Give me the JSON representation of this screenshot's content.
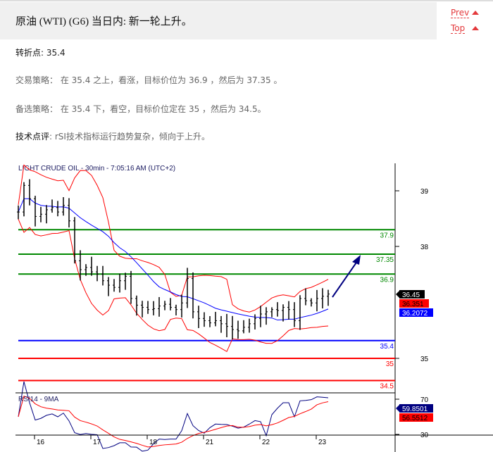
{
  "header": {
    "title": "原油 (WTI) (G6) 当日内: 新一轮上升。",
    "prev": "Prev",
    "top": "Top"
  },
  "content": {
    "pivot_label": "转折点",
    "pivot_value": ": 35.4",
    "strategy": "交易策略：  在 35.4 之上，看涨，目标价位为 36.9 ，然后为 37.35 。",
    "alternative": "备选策略：  在 35.4 下，看空，目标价位定在 35 ，然后为 34.5。",
    "comment_label": "技术点评",
    "comment_value": ": rSI技术指标运行趋势复杂，倾向于上升。"
  },
  "chart_data": {
    "type": "line",
    "title": "LIGHT CRUDE OIL - 30min - 7:05:16 AM (UTC+2)",
    "y_ticks": [
      "39",
      "38",
      "35"
    ],
    "x_ticks": [
      "16",
      "17",
      "18",
      "21",
      "22",
      "23"
    ],
    "levels": [
      {
        "value": 37.9,
        "label": "37.9",
        "color": "#008800"
      },
      {
        "value": 37.35,
        "label": "37.35",
        "color": "#008800"
      },
      {
        "value": 36.9,
        "label": "36.9",
        "color": "#008800"
      },
      {
        "value": 35.4,
        "label": "35.4",
        "color": "#0000ff"
      },
      {
        "value": 35,
        "label": "35",
        "color": "#ff0000"
      },
      {
        "value": 34.5,
        "label": "34.5",
        "color": "#ff0000"
      }
    ],
    "closes": [
      38.3,
      38.9,
      38.6,
      38.2,
      38.25,
      38.35,
      38.4,
      38.3,
      38.45,
      38.1,
      37.2,
      37.0,
      37.05,
      36.95,
      36.9,
      36.75,
      36.65,
      36.6,
      36.75,
      36.85,
      36.35,
      36.2,
      36.15,
      36.1,
      36.12,
      36.18,
      36.22,
      36.15,
      36.1,
      36.25,
      36.8,
      36.05,
      35.9,
      35.85,
      35.8,
      35.85,
      35.78,
      35.72,
      35.65,
      35.62,
      35.7,
      35.78,
      35.9,
      36.0,
      36.05,
      36.1,
      36.08,
      36.15,
      36.1,
      35.85,
      36.35,
      36.3,
      36.25,
      36.35,
      36.4,
      36.45
    ],
    "markers": {
      "last": "36.45",
      "band": "36.351",
      "ma": "36.2072"
    },
    "rsi": {
      "title": "RSI14 - 9MA",
      "ticks": [
        "70",
        "30"
      ],
      "last": "59.8501",
      "ma": "56.5512"
    },
    "colors": {
      "bands": "#ff0000",
      "ma": "#0000ff",
      "rsi": "#000080",
      "rsi_ma": "#ff0000",
      "arrow": "#000080"
    }
  }
}
